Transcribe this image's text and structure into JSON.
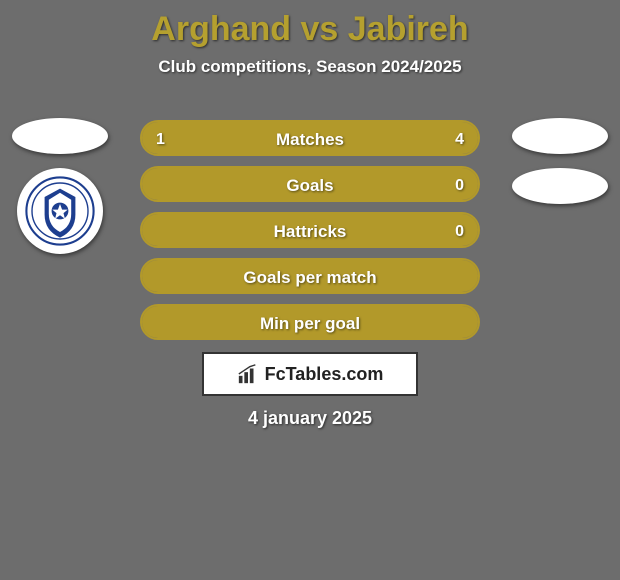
{
  "background_color": "#6d6d6d",
  "title": {
    "text": "Arghand vs Jabireh",
    "color": "#b5a02f",
    "fontsize": 34
  },
  "subtitle": {
    "text": "Club competitions, Season 2024/2025",
    "color": "#ffffff",
    "fontsize": 17
  },
  "avatars": {
    "left_oval_color": "#ffffff",
    "left_circle_color": "#ffffff",
    "right_oval1_color": "#ffffff",
    "right_oval2_color": "#ffffff",
    "club_logo_primary": "#1d3e8f",
    "club_logo_accent": "#ffffff"
  },
  "bars": {
    "border_color": "#b2992a",
    "border_width": 2,
    "fill_left_color": "#b2992a",
    "fill_right_color": "#b2992a",
    "empty_color": "transparent",
    "label_color": "#ffffff",
    "value_color": "#ffffff",
    "height": 36,
    "radius": 18,
    "items": [
      {
        "label": "Matches",
        "left_value": "1",
        "right_value": "4",
        "left_pct": 20,
        "right_pct": 80
      },
      {
        "label": "Goals",
        "left_value": "",
        "right_value": "0",
        "left_pct": 0,
        "right_pct": 100
      },
      {
        "label": "Hattricks",
        "left_value": "",
        "right_value": "0",
        "left_pct": 0,
        "right_pct": 100
      },
      {
        "label": "Goals per match",
        "left_value": "",
        "right_value": "",
        "left_pct": 0,
        "right_pct": 100
      },
      {
        "label": "Min per goal",
        "left_value": "",
        "right_value": "",
        "left_pct": 0,
        "right_pct": 100
      }
    ]
  },
  "brand": {
    "text": "FcTables.com",
    "border_color": "#333333",
    "background_color": "#ffffff",
    "text_color": "#222222",
    "icon_color": "#333333"
  },
  "date": {
    "text": "4 january 2025",
    "color": "#ffffff",
    "fontsize": 18
  }
}
